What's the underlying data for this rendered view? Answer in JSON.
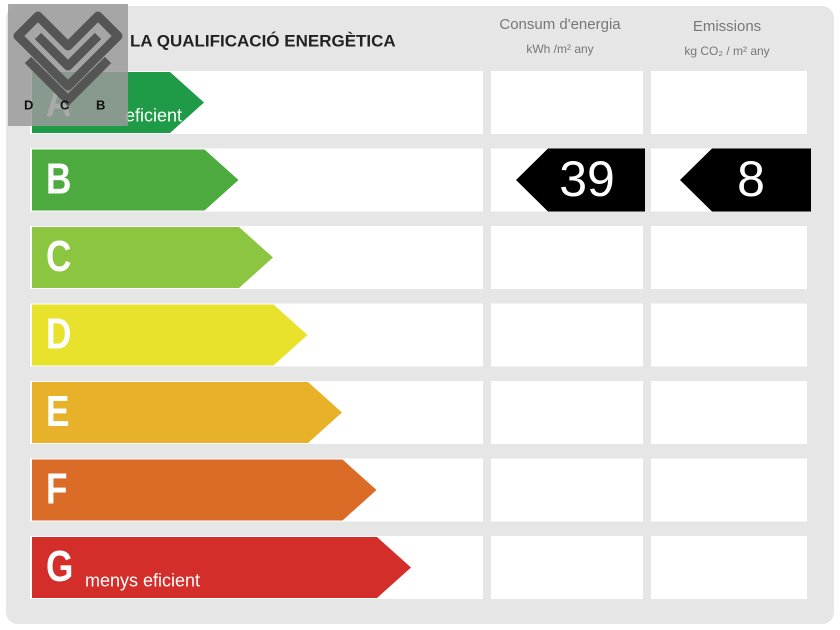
{
  "header": {
    "title": "LA QUALIFICACIÓ ENERGÈTICA",
    "columns": [
      {
        "title": "Consum d'energia",
        "unit": "kWh /m² any"
      },
      {
        "title": "Emissions",
        "unit": "kg CO₂ / m² any"
      }
    ]
  },
  "logo": {
    "letters": [
      "D",
      "C",
      "B"
    ]
  },
  "rows": [
    {
      "letter": "A",
      "label": "eficient",
      "color": "#1f9a46"
    },
    {
      "letter": "B",
      "color": "#4caa3f"
    },
    {
      "letter": "C",
      "color": "#8cc53f"
    },
    {
      "letter": "D",
      "color": "#e8e22c"
    },
    {
      "letter": "E",
      "color": "#e7b12a"
    },
    {
      "letter": "F",
      "color": "#db6c28"
    },
    {
      "letter": "G",
      "label": "menys eficient",
      "color": "#d32e2a"
    }
  ],
  "rating": {
    "row": 1,
    "values": [
      39,
      8
    ]
  }
}
